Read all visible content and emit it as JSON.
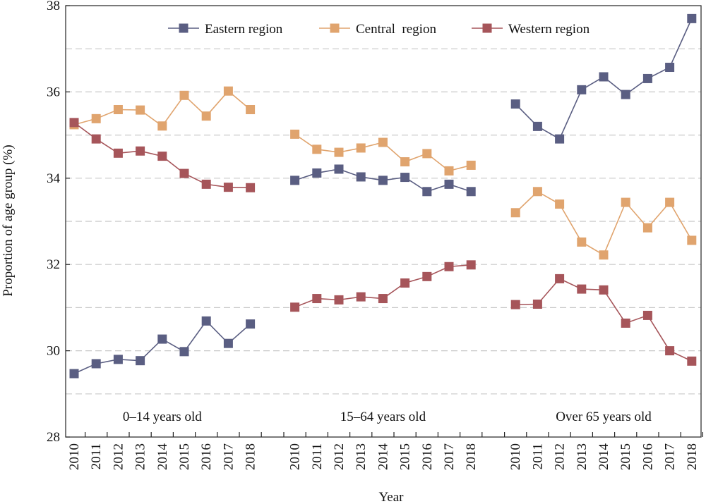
{
  "chart_data": {
    "type": "line",
    "title": "",
    "xlabel": "Year",
    "ylabel": "Proportion of age group (%)",
    "ylim": [
      28,
      38
    ],
    "yticks": [
      28,
      30,
      32,
      34,
      36,
      38
    ],
    "grid": "horizontal dashed",
    "legend_position": "top",
    "groups": [
      {
        "label": "0–14 years old",
        "years": [
          "2010",
          "2011",
          "2012",
          "2013",
          "2014",
          "2015",
          "2016",
          "2017",
          "2018"
        ]
      },
      {
        "label": "15–64 years old",
        "years": [
          "2010",
          "2011",
          "2012",
          "2013",
          "2014",
          "2015",
          "2016",
          "2017",
          "2018"
        ]
      },
      {
        "label": "Over 65 years old",
        "years": [
          "2010",
          "2011",
          "2012",
          "2013",
          "2014",
          "2015",
          "2016",
          "2017",
          "2018"
        ]
      }
    ],
    "series": [
      {
        "name": "Eastern region",
        "color": "#5a5e82",
        "values": [
          [
            29.47,
            29.7,
            29.8,
            29.77,
            30.27,
            29.98,
            30.69,
            30.17,
            30.62
          ],
          [
            33.95,
            34.12,
            34.21,
            34.03,
            33.95,
            34.02,
            33.69,
            33.86,
            33.69
          ],
          [
            35.72,
            35.2,
            34.91,
            36.05,
            36.35,
            35.94,
            36.31,
            36.57,
            37.7
          ]
        ]
      },
      {
        "name": "Central  region",
        "color": "#e0a46e",
        "values": [
          [
            35.24,
            35.38,
            35.59,
            35.58,
            35.21,
            35.92,
            35.44,
            36.02,
            35.59
          ],
          [
            35.02,
            34.67,
            34.6,
            34.7,
            34.83,
            34.38,
            34.57,
            34.17,
            34.3
          ],
          [
            33.2,
            33.69,
            33.4,
            32.52,
            32.22,
            33.44,
            32.85,
            33.44,
            32.56
          ]
        ]
      },
      {
        "name": "Western region",
        "color": "#a6555a",
        "values": [
          [
            35.29,
            34.91,
            34.58,
            34.63,
            34.51,
            34.11,
            33.86,
            33.79,
            33.78
          ],
          [
            31.01,
            31.21,
            31.18,
            31.25,
            31.21,
            31.57,
            31.72,
            31.95,
            31.99
          ],
          [
            31.07,
            31.08,
            31.67,
            31.43,
            31.41,
            30.64,
            30.82,
            30.0,
            29.76
          ]
        ]
      }
    ]
  }
}
